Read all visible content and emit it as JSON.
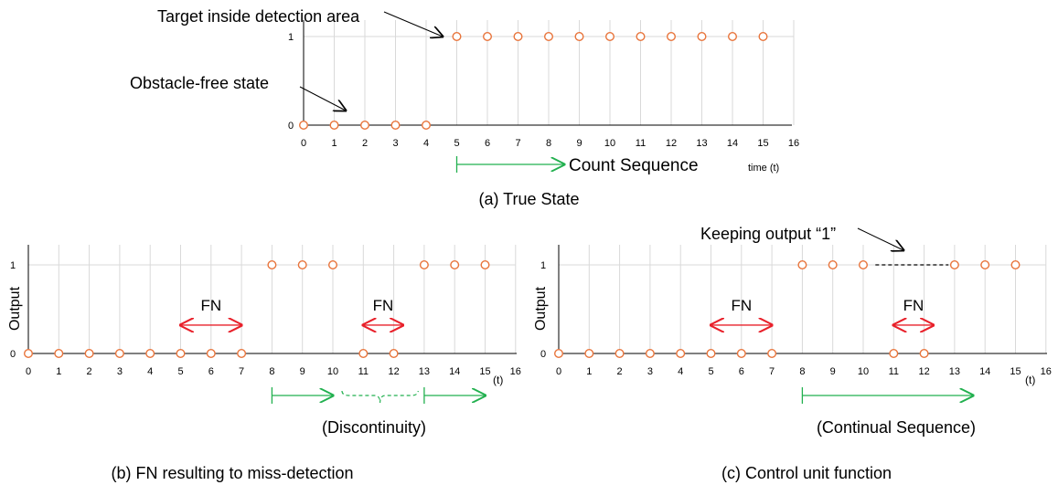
{
  "chart_data": [
    {
      "type": "scatter",
      "x_ticks": [
        0,
        1,
        2,
        3,
        4,
        5,
        6,
        7,
        8,
        9,
        10,
        11,
        12,
        13,
        14,
        15,
        16
      ],
      "y_ticks": [
        0,
        1
      ],
      "xlim": [
        0,
        16
      ],
      "ylim": [
        0,
        1
      ],
      "grid": true,
      "xlabel": "time (t)",
      "ylabel": "",
      "points": [
        [
          0,
          0
        ],
        [
          1,
          0
        ],
        [
          2,
          0
        ],
        [
          3,
          0
        ],
        [
          4,
          0
        ],
        [
          5,
          1
        ],
        [
          6,
          1
        ],
        [
          7,
          1
        ],
        [
          8,
          1
        ],
        [
          9,
          1
        ],
        [
          10,
          1
        ],
        [
          11,
          1
        ],
        [
          12,
          1
        ],
        [
          13,
          1
        ],
        [
          14,
          1
        ],
        [
          15,
          1
        ]
      ],
      "caption": "(a) True State",
      "annotations": {
        "target": "Target inside detection area",
        "obstacle": "Obstacle-free state",
        "sequence": "Count Sequence"
      },
      "sequence_arrow": {
        "from": 5,
        "to": 8.5
      }
    },
    {
      "type": "scatter",
      "x_ticks": [
        0,
        1,
        2,
        3,
        4,
        5,
        6,
        7,
        8,
        9,
        10,
        11,
        12,
        13,
        14,
        15,
        16
      ],
      "y_ticks": [
        0,
        1
      ],
      "xlim": [
        0,
        16
      ],
      "ylim": [
        0,
        1
      ],
      "grid": true,
      "xlabel": "(t)",
      "ylabel": "Output",
      "points": [
        [
          0,
          0
        ],
        [
          1,
          0
        ],
        [
          2,
          0
        ],
        [
          3,
          0
        ],
        [
          4,
          0
        ],
        [
          5,
          0
        ],
        [
          6,
          0
        ],
        [
          7,
          0
        ],
        [
          8,
          1
        ],
        [
          9,
          1
        ],
        [
          10,
          1
        ],
        [
          11,
          0
        ],
        [
          12,
          0
        ],
        [
          13,
          1
        ],
        [
          14,
          1
        ],
        [
          15,
          1
        ]
      ],
      "fn_spans": [
        {
          "from": 5,
          "to": 7,
          "label": "FN"
        },
        {
          "from": 11,
          "to": 12.3,
          "label": "FN"
        }
      ],
      "sequence_arrows": [
        {
          "from": 8,
          "to": 10
        },
        {
          "from": 13,
          "to": 15
        }
      ],
      "gap": {
        "from": 10.3,
        "to": 12.8
      },
      "sequence_label": "(Discontinuity)",
      "caption": "(b) FN resulting to miss-detection"
    },
    {
      "type": "scatter",
      "x_ticks": [
        0,
        1,
        2,
        3,
        4,
        5,
        6,
        7,
        8,
        9,
        10,
        11,
        12,
        13,
        14,
        15,
        16
      ],
      "y_ticks": [
        0,
        1
      ],
      "xlim": [
        0,
        16
      ],
      "ylim": [
        0,
        1
      ],
      "grid": true,
      "xlabel": "(t)",
      "ylabel": "Output",
      "points": [
        [
          0,
          0
        ],
        [
          1,
          0
        ],
        [
          2,
          0
        ],
        [
          3,
          0
        ],
        [
          4,
          0
        ],
        [
          5,
          0
        ],
        [
          6,
          0
        ],
        [
          7,
          0
        ],
        [
          8,
          1
        ],
        [
          9,
          1
        ],
        [
          10,
          1
        ],
        [
          11,
          0
        ],
        [
          12,
          0
        ],
        [
          13,
          1
        ],
        [
          14,
          1
        ],
        [
          15,
          1
        ]
      ],
      "fn_spans": [
        {
          "from": 5,
          "to": 7,
          "label": "FN"
        },
        {
          "from": 11,
          "to": 12.3,
          "label": "FN"
        }
      ],
      "keep_line": {
        "from": 10.4,
        "to": 12.8
      },
      "sequence_arrows": [
        {
          "from": 8,
          "to": 13.6
        }
      ],
      "sequence_label": "(Continual Sequence)",
      "keep_label": "Keeping output “1”",
      "caption": "(c) Control unit function"
    }
  ],
  "colors": {
    "marker": "#e8743b",
    "fn": "#e8202a",
    "sequence": "#22b04f",
    "axis": "#000000",
    "grid": "#d9d9d9",
    "keep_line": "#000000"
  }
}
